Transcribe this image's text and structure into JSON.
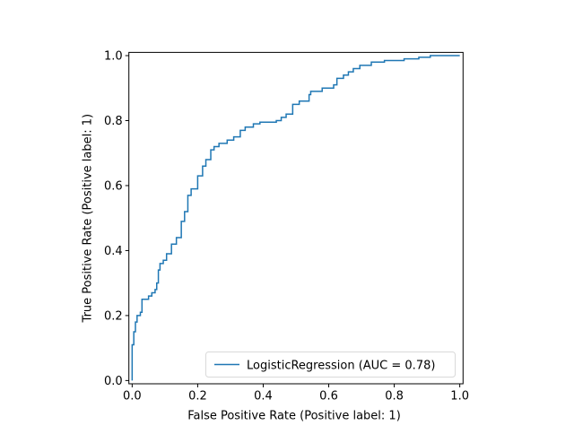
{
  "chart_data": {
    "type": "line",
    "title": "",
    "xlabel": "False Positive Rate (Positive label: 1)",
    "ylabel": "True Positive Rate (Positive label: 1)",
    "xlim": [
      -0.01,
      1.01
    ],
    "ylim": [
      -0.01,
      1.01
    ],
    "xticks": [
      0.0,
      0.2,
      0.4,
      0.6,
      0.8,
      1.0
    ],
    "yticks": [
      0.0,
      0.2,
      0.4,
      0.6,
      0.8,
      1.0
    ],
    "xtick_labels": [
      "0.0",
      "0.2",
      "0.4",
      "0.6",
      "0.8",
      "1.0"
    ],
    "ytick_labels": [
      "0.0",
      "0.2",
      "0.4",
      "0.6",
      "0.8",
      "1.0"
    ],
    "grid": false,
    "legend_position": "lower-right",
    "series": [
      {
        "name": "LogisticRegression (AUC = 0.78)",
        "color": "#1f77b4",
        "step": true,
        "points": [
          [
            0.0,
            0.0
          ],
          [
            0.0,
            0.11
          ],
          [
            0.005,
            0.11
          ],
          [
            0.005,
            0.15
          ],
          [
            0.01,
            0.15
          ],
          [
            0.01,
            0.18
          ],
          [
            0.015,
            0.18
          ],
          [
            0.015,
            0.2
          ],
          [
            0.025,
            0.2
          ],
          [
            0.025,
            0.21
          ],
          [
            0.03,
            0.21
          ],
          [
            0.03,
            0.25
          ],
          [
            0.05,
            0.25
          ],
          [
            0.05,
            0.26
          ],
          [
            0.06,
            0.26
          ],
          [
            0.06,
            0.27
          ],
          [
            0.07,
            0.27
          ],
          [
            0.07,
            0.28
          ],
          [
            0.075,
            0.28
          ],
          [
            0.075,
            0.3
          ],
          [
            0.08,
            0.3
          ],
          [
            0.08,
            0.34
          ],
          [
            0.085,
            0.34
          ],
          [
            0.085,
            0.36
          ],
          [
            0.095,
            0.36
          ],
          [
            0.095,
            0.37
          ],
          [
            0.105,
            0.37
          ],
          [
            0.105,
            0.39
          ],
          [
            0.12,
            0.39
          ],
          [
            0.12,
            0.42
          ],
          [
            0.135,
            0.42
          ],
          [
            0.135,
            0.44
          ],
          [
            0.15,
            0.44
          ],
          [
            0.15,
            0.49
          ],
          [
            0.16,
            0.49
          ],
          [
            0.16,
            0.52
          ],
          [
            0.17,
            0.52
          ],
          [
            0.17,
            0.57
          ],
          [
            0.18,
            0.57
          ],
          [
            0.18,
            0.59
          ],
          [
            0.2,
            0.59
          ],
          [
            0.2,
            0.63
          ],
          [
            0.215,
            0.63
          ],
          [
            0.215,
            0.66
          ],
          [
            0.225,
            0.66
          ],
          [
            0.225,
            0.68
          ],
          [
            0.24,
            0.68
          ],
          [
            0.24,
            0.71
          ],
          [
            0.25,
            0.71
          ],
          [
            0.25,
            0.72
          ],
          [
            0.265,
            0.72
          ],
          [
            0.265,
            0.73
          ],
          [
            0.29,
            0.73
          ],
          [
            0.29,
            0.74
          ],
          [
            0.31,
            0.74
          ],
          [
            0.31,
            0.75
          ],
          [
            0.33,
            0.75
          ],
          [
            0.33,
            0.77
          ],
          [
            0.345,
            0.77
          ],
          [
            0.345,
            0.78
          ],
          [
            0.37,
            0.78
          ],
          [
            0.37,
            0.79
          ],
          [
            0.39,
            0.79
          ],
          [
            0.39,
            0.795
          ],
          [
            0.44,
            0.795
          ],
          [
            0.44,
            0.8
          ],
          [
            0.455,
            0.8
          ],
          [
            0.455,
            0.81
          ],
          [
            0.47,
            0.81
          ],
          [
            0.47,
            0.82
          ],
          [
            0.49,
            0.82
          ],
          [
            0.49,
            0.85
          ],
          [
            0.51,
            0.85
          ],
          [
            0.51,
            0.86
          ],
          [
            0.54,
            0.86
          ],
          [
            0.54,
            0.88
          ],
          [
            0.545,
            0.88
          ],
          [
            0.545,
            0.89
          ],
          [
            0.58,
            0.89
          ],
          [
            0.58,
            0.9
          ],
          [
            0.615,
            0.9
          ],
          [
            0.615,
            0.91
          ],
          [
            0.625,
            0.91
          ],
          [
            0.625,
            0.93
          ],
          [
            0.645,
            0.93
          ],
          [
            0.645,
            0.94
          ],
          [
            0.66,
            0.94
          ],
          [
            0.66,
            0.95
          ],
          [
            0.675,
            0.95
          ],
          [
            0.675,
            0.96
          ],
          [
            0.695,
            0.96
          ],
          [
            0.695,
            0.97
          ],
          [
            0.73,
            0.97
          ],
          [
            0.73,
            0.98
          ],
          [
            0.77,
            0.98
          ],
          [
            0.77,
            0.985
          ],
          [
            0.83,
            0.985
          ],
          [
            0.83,
            0.99
          ],
          [
            0.875,
            0.99
          ],
          [
            0.875,
            0.995
          ],
          [
            0.91,
            0.995
          ],
          [
            0.91,
            1.0
          ],
          [
            1.0,
            1.0
          ]
        ]
      }
    ]
  }
}
